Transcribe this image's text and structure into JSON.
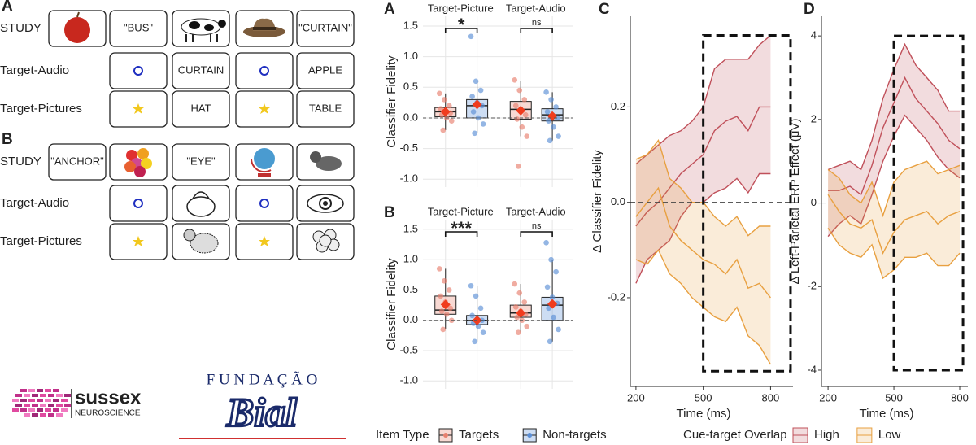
{
  "diagram": {
    "panels": [
      {
        "label": "A",
        "rows": [
          {
            "name": "STUDY",
            "words": [
              "\"BUS\"",
              "\"CURTAIN\""
            ]
          },
          {
            "name": "Target-Audio",
            "words": [
              "CURTAIN",
              "APPLE"
            ]
          },
          {
            "name": "Target-Pictures",
            "words": [
              "HAT",
              "TABLE"
            ]
          }
        ]
      },
      {
        "label": "B",
        "rows": [
          {
            "name": "STUDY",
            "words": [
              "\"ANCHOR\"",
              "\"EYE\""
            ]
          },
          {
            "name": "Target-Audio"
          },
          {
            "name": "Target-Pictures"
          }
        ]
      }
    ]
  },
  "logos": {
    "sussex": "sussex",
    "sussex_sub": "NEUROSCIENCE",
    "fundacao": "F U N D A Ç Ã O",
    "bial": "Bial"
  },
  "chart_data": [
    {
      "type": "box",
      "panel": "A",
      "ylabel": "Classifier Fidelity",
      "ylim": [
        -1.13,
        1.66
      ],
      "yticks": [
        1.5,
        {
          "value": 1,
          "label": "1.0"
        },
        0.5,
        {
          "value": 0,
          "label": "0.0"
        },
        -0.5,
        {
          "value": -1,
          "label": "-1.0"
        }
      ],
      "hline": 0,
      "grid": true,
      "colors": [
        "#e8806e",
        "#5b8fd6"
      ],
      "facets": [
        {
          "name": "Target-Picture",
          "significance": "*",
          "groups": [
            {
              "q1": 0.02,
              "median": 0.1,
              "q3": 0.17,
              "whisker_low": -0.2,
              "whisker_high": 0.4,
              "mean": 0.1,
              "points": [
                0.4,
                0.3,
                0.2,
                0.15,
                0.1,
                0.08,
                0.05,
                0.0,
                -0.05,
                -0.2
              ]
            },
            {
              "q1": 0.0,
              "median": 0.2,
              "q3": 0.3,
              "whisker_low": -0.25,
              "whisker_high": 0.6,
              "mean": 0.22,
              "points": [
                1.33,
                0.6,
                0.45,
                0.35,
                0.25,
                0.2,
                0.1,
                0.0,
                -0.1,
                -0.25
              ]
            }
          ]
        },
        {
          "name": "Target-Audio",
          "significance": "ns",
          "groups": [
            {
              "q1": -0.02,
              "median": 0.14,
              "q3": 0.27,
              "whisker_low": -0.3,
              "whisker_high": 0.6,
              "mean": 0.12,
              "points": [
                0.62,
                0.45,
                0.3,
                0.2,
                0.14,
                0.05,
                -0.02,
                -0.15,
                -0.3,
                -0.79
              ]
            },
            {
              "q1": -0.05,
              "median": 0.05,
              "q3": 0.15,
              "whisker_low": -0.37,
              "whisker_high": 0.42,
              "mean": 0.03,
              "points": [
                0.42,
                0.3,
                0.18,
                0.1,
                0.05,
                0.0,
                -0.05,
                -0.15,
                -0.3,
                -0.37
              ]
            }
          ]
        }
      ]
    },
    {
      "type": "box",
      "panel": "B",
      "ylabel": "Classifier Fidelity",
      "ylim": [
        -1.13,
        1.66
      ],
      "yticks": [
        1.5,
        {
          "value": 1,
          "label": "1.0"
        },
        0.5,
        {
          "value": 0,
          "label": "0.0"
        },
        -0.5,
        {
          "value": -1,
          "label": "-1.0"
        }
      ],
      "hline": 0,
      "grid": true,
      "legend": {
        "title": "Item Type",
        "series": [
          {
            "name": "Targets",
            "color": "#e8806e"
          },
          {
            "name": "Non-targets",
            "color": "#5b8fd6"
          }
        ]
      },
      "facets": [
        {
          "name": "Target-Picture",
          "significance": "***",
          "groups": [
            {
              "q1": 0.1,
              "median": 0.17,
              "q3": 0.4,
              "whisker_low": -0.15,
              "whisker_high": 0.85,
              "mean": 0.26,
              "points": [
                0.85,
                0.65,
                0.5,
                0.4,
                0.3,
                0.2,
                0.15,
                0.1,
                0.0,
                -0.15
              ]
            },
            {
              "q1": -0.07,
              "median": 0.0,
              "q3": 0.08,
              "whisker_low": -0.35,
              "whisker_high": 0.57,
              "mean": 0.0,
              "points": [
                0.57,
                0.4,
                0.2,
                0.08,
                0.02,
                0.0,
                -0.05,
                -0.1,
                -0.2,
                -0.35
              ]
            }
          ]
        },
        {
          "name": "Target-Audio",
          "significance": "ns",
          "groups": [
            {
              "q1": 0.05,
              "median": 0.12,
              "q3": 0.25,
              "whisker_low": -0.2,
              "whisker_high": 0.6,
              "mean": 0.12,
              "points": [
                0.6,
                0.45,
                0.3,
                0.22,
                0.15,
                0.1,
                0.05,
                0.0,
                -0.1,
                -0.2
              ]
            },
            {
              "q1": 0.0,
              "median": 0.25,
              "q3": 0.38,
              "whisker_low": -0.35,
              "whisker_high": 1.0,
              "mean": 0.27,
              "points": [
                1.28,
                1.0,
                0.8,
                0.55,
                0.38,
                0.28,
                0.2,
                0.05,
                -0.15,
                -0.35
              ]
            }
          ]
        }
      ]
    },
    {
      "type": "ribbon",
      "panel": "C",
      "xlabel": "Time (ms)",
      "ylabel": "Δ Classifier Fidelity",
      "xlim": [
        175,
        900
      ],
      "xticks": [
        200,
        500,
        800
      ],
      "ylim": [
        -0.386,
        0.39
      ],
      "yticks": [
        0.2,
        {
          "value": 0,
          "label": "0.0"
        },
        -0.2
      ],
      "hline": 0,
      "window": {
        "x": [
          500,
          889
        ],
        "y": [
          -0.354,
          0.35
        ]
      },
      "x": [
        200,
        250,
        300,
        350,
        400,
        450,
        500,
        550,
        600,
        650,
        700,
        750,
        800
      ],
      "series": [
        {
          "color": "#c0505a",
          "upper": [
            0.08,
            0.1,
            0.12,
            0.14,
            0.15,
            0.17,
            0.2,
            0.28,
            0.3,
            0.3,
            0.3,
            0.33,
            0.35
          ],
          "values": [
            -0.05,
            -0.02,
            0.0,
            0.03,
            0.06,
            0.08,
            0.1,
            0.15,
            0.17,
            0.18,
            0.15,
            0.2,
            0.2
          ],
          "lower": [
            -0.17,
            -0.12,
            -0.1,
            -0.08,
            -0.03,
            0.0,
            0.0,
            0.02,
            0.03,
            0.05,
            0.02,
            0.06,
            0.06
          ]
        },
        {
          "color": "#e8a040",
          "upper": [
            0.09,
            0.1,
            0.13,
            0.05,
            0.03,
            0.0,
            0.0,
            -0.03,
            -0.05,
            -0.03,
            -0.07,
            -0.05,
            -0.05
          ],
          "values": [
            -0.03,
            0.0,
            0.03,
            -0.05,
            -0.08,
            -0.1,
            -0.12,
            -0.13,
            -0.15,
            -0.12,
            -0.18,
            -0.17,
            -0.2
          ],
          "lower": [
            -0.12,
            -0.13,
            -0.1,
            -0.15,
            -0.17,
            -0.2,
            -0.22,
            -0.24,
            -0.25,
            -0.22,
            -0.28,
            -0.3,
            -0.34
          ]
        }
      ]
    },
    {
      "type": "ribbon",
      "panel": "D",
      "xlabel": "Time (ms)",
      "ylabel": "Δ Left-Parietal ERP Effect (μV)",
      "xlim": [
        170,
        837
      ],
      "xticks": [
        200,
        500,
        800
      ],
      "ylim": [
        -4.39,
        4.47
      ],
      "yticks": [
        4,
        2,
        0,
        -2,
        -4
      ],
      "hline": 0,
      "window": {
        "x": [
          500,
          815
        ],
        "y": [
          -4,
          4
        ]
      },
      "x": [
        200,
        250,
        300,
        350,
        400,
        450,
        500,
        550,
        600,
        650,
        700,
        750,
        800
      ],
      "legend": {
        "title": "Cue-target Overlap"
      },
      "series": [
        {
          "name": "High",
          "color": "#c0505a",
          "upper": [
            0.8,
            0.9,
            1.0,
            0.8,
            1.5,
            2.5,
            3.2,
            3.8,
            3.3,
            3.0,
            2.7,
            2.2,
            2.2
          ],
          "values": [
            0.3,
            0.3,
            0.4,
            0.2,
            0.9,
            1.8,
            2.4,
            3.0,
            2.5,
            2.2,
            1.9,
            1.5,
            1.3
          ],
          "lower": [
            -0.8,
            -0.5,
            -0.3,
            -0.5,
            0.2,
            1.0,
            1.6,
            2.1,
            1.8,
            1.5,
            1.1,
            0.8,
            0.6
          ]
        },
        {
          "name": "Low",
          "color": "#e8a040",
          "upper": [
            0.8,
            0.6,
            0.2,
            0.0,
            0.5,
            -0.3,
            0.5,
            0.8,
            0.9,
            1.0,
            0.7,
            0.8,
            0.9
          ],
          "values": [
            0.2,
            -0.2,
            -0.5,
            -0.6,
            -0.4,
            -1.2,
            -0.7,
            -0.4,
            -0.3,
            -0.2,
            -0.5,
            -0.3,
            -0.2
          ],
          "lower": [
            -0.6,
            -1.0,
            -1.2,
            -1.3,
            -1.0,
            -1.8,
            -1.6,
            -1.3,
            -1.3,
            -1.2,
            -1.5,
            -1.5,
            -1.2
          ]
        }
      ]
    }
  ]
}
